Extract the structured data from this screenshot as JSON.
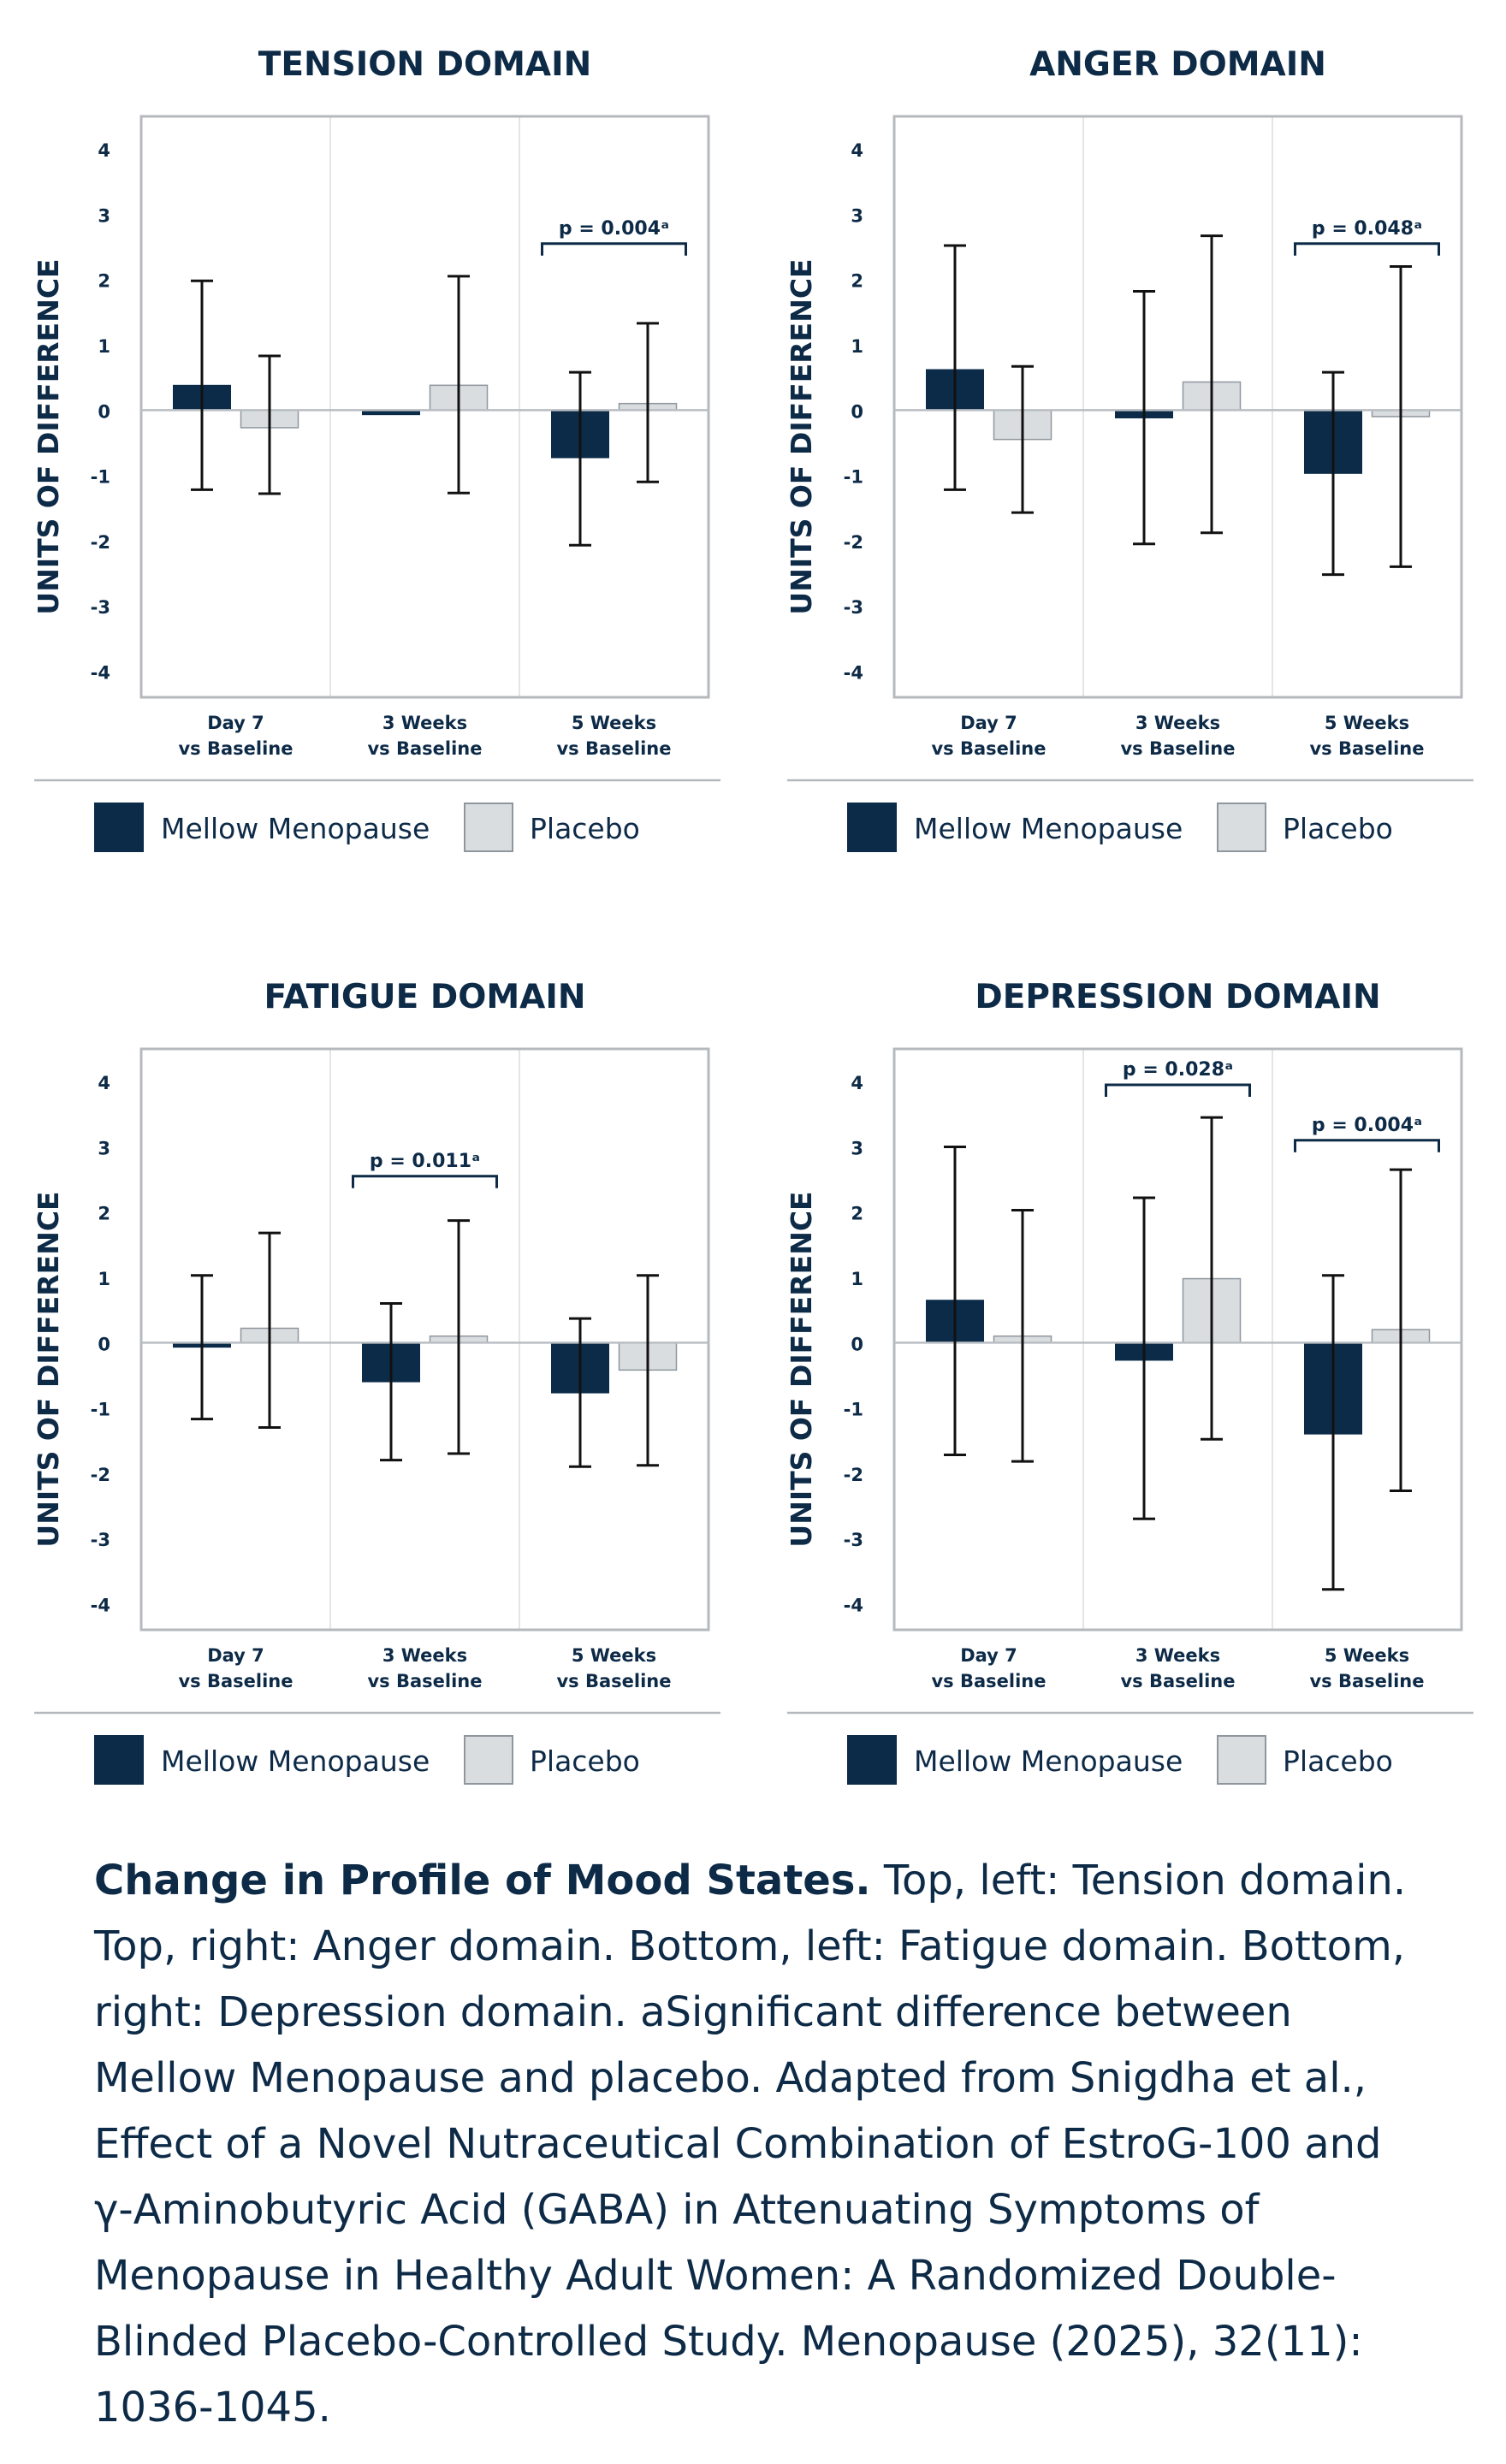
{
  "colors": {
    "mellow": "#0b2b48",
    "placebo": "#d9dde0",
    "placebo_border": "#8f979e",
    "frame": "#b5b9bd",
    "grid": "#e3e5e7",
    "text": "#0d2a47"
  },
  "chart_data": [
    {
      "type": "bar",
      "title": "TENSION DOMAIN",
      "ylabel": "UNITS OF DIFFERENCE",
      "ylim": [
        -4.4,
        4.5
      ],
      "yticks": [
        "4",
        "3",
        "2",
        "1",
        "0",
        "-1",
        "-2",
        "-3",
        "-4"
      ],
      "categories": [
        [
          "Day 7",
          "vs Baseline"
        ],
        [
          "3 Weeks",
          "vs Baseline"
        ],
        [
          "5 Weeks",
          "vs Baseline"
        ]
      ],
      "series": [
        {
          "name": "Mellow Menopause",
          "values": [
            0.38,
            -0.07,
            -0.73
          ],
          "err_low": [
            -1.22,
            -0.07,
            -2.07
          ],
          "err_high": [
            1.98,
            -0.07,
            0.58
          ]
        },
        {
          "name": "Placebo",
          "values": [
            -0.27,
            0.38,
            0.1
          ],
          "err_low": [
            -1.28,
            -1.27,
            -1.1
          ],
          "err_high": [
            0.83,
            2.05,
            1.33
          ]
        }
      ],
      "annotations": [
        {
          "category": 2,
          "text": "p = 0.004ᵃ",
          "y": 2.55
        }
      ],
      "legend": [
        "Mellow Menopause",
        "Placebo"
      ]
    },
    {
      "type": "bar",
      "title": "ANGER DOMAIN",
      "ylabel": "UNITS OF DIFFERENCE",
      "ylim": [
        -4.4,
        4.5
      ],
      "yticks": [
        "4",
        "3",
        "2",
        "1",
        "0",
        "-1",
        "-2",
        "-3",
        "-4"
      ],
      "categories": [
        [
          "Day 7",
          "vs Baseline"
        ],
        [
          "3 Weeks",
          "vs Baseline"
        ],
        [
          "5 Weeks",
          "vs Baseline"
        ]
      ],
      "series": [
        {
          "name": "Mellow Menopause",
          "values": [
            0.62,
            -0.12,
            -0.97
          ],
          "err_low": [
            -1.22,
            -2.05,
            -2.52
          ],
          "err_high": [
            2.52,
            1.82,
            0.58
          ]
        },
        {
          "name": "Placebo",
          "values": [
            -0.45,
            0.43,
            -0.1
          ],
          "err_low": [
            -1.57,
            -1.88,
            -2.4
          ],
          "err_high": [
            0.67,
            2.67,
            2.2
          ]
        }
      ],
      "annotations": [
        {
          "category": 2,
          "text": "p = 0.048ᵃ",
          "y": 2.55
        }
      ],
      "legend": [
        "Mellow Menopause",
        "Placebo"
      ]
    },
    {
      "type": "bar",
      "title": "FATIGUE DOMAIN",
      "ylabel": "UNITS OF DIFFERENCE",
      "ylim": [
        -4.4,
        4.5
      ],
      "yticks": [
        "4",
        "3",
        "2",
        "1",
        "0",
        "-1",
        "-2",
        "-3",
        "-4"
      ],
      "categories": [
        [
          "Day 7",
          "vs Baseline"
        ],
        [
          "3 Weeks",
          "vs Baseline"
        ],
        [
          "5 Weeks",
          "vs Baseline"
        ]
      ],
      "series": [
        {
          "name": "Mellow Menopause",
          "values": [
            -0.07,
            -0.6,
            -0.77
          ],
          "err_low": [
            -1.17,
            -1.8,
            -1.9
          ],
          "err_high": [
            1.03,
            0.6,
            0.37
          ]
        },
        {
          "name": "Placebo",
          "values": [
            0.22,
            0.1,
            -0.42
          ],
          "err_low": [
            -1.3,
            -1.7,
            -1.88
          ],
          "err_high": [
            1.68,
            1.87,
            1.03
          ]
        }
      ],
      "annotations": [
        {
          "category": 1,
          "text": "p = 0.011ᵃ",
          "y": 2.55
        }
      ],
      "legend": [
        "Mellow Menopause",
        "Placebo"
      ]
    },
    {
      "type": "bar",
      "title": "DEPRESSION DOMAIN",
      "ylabel": "UNITS OF DIFFERENCE",
      "ylim": [
        -4.4,
        4.5
      ],
      "yticks": [
        "4",
        "3",
        "2",
        "1",
        "0",
        "-1",
        "-2",
        "-3",
        "-4"
      ],
      "categories": [
        [
          "Day 7",
          "vs Baseline"
        ],
        [
          "3 Weeks",
          "vs Baseline"
        ],
        [
          "5 Weeks",
          "vs Baseline"
        ]
      ],
      "series": [
        {
          "name": "Mellow Menopause",
          "values": [
            0.65,
            -0.27,
            -1.4
          ],
          "err_low": [
            -1.72,
            -2.7,
            -3.78
          ],
          "err_high": [
            3.0,
            2.22,
            1.03
          ]
        },
        {
          "name": "Placebo",
          "values": [
            0.1,
            0.98,
            0.2
          ],
          "err_low": [
            -1.82,
            -1.48,
            -2.27
          ],
          "err_high": [
            2.03,
            3.45,
            2.65
          ]
        }
      ],
      "annotations": [
        {
          "category": 1,
          "text": "p = 0.028ᵃ",
          "y": 3.95
        },
        {
          "category": 2,
          "text": "p = 0.004ᵃ",
          "y": 3.1
        }
      ],
      "legend": [
        "Mellow Menopause",
        "Placebo"
      ]
    }
  ],
  "caption": {
    "lead": "Change in Profile of Mood States.",
    "text": " Top, left: Tension domain. Top, right: Anger domain. Bottom, left: Fatigue domain. Bottom, right: Depression domain. aSignificant difference between Mellow Menopause and placebo.  Adapted from Snigdha et al., Effect of a Novel Nutraceutical Combination of EstroG-100 and γ-Aminobutyric Acid (GABA) in Attenuating Symptoms of Menopause in Healthy Adult Women: A Randomized Double-Blinded Placebo-Controlled Study. Menopause (2025), 32(11): 1036-1045."
  }
}
